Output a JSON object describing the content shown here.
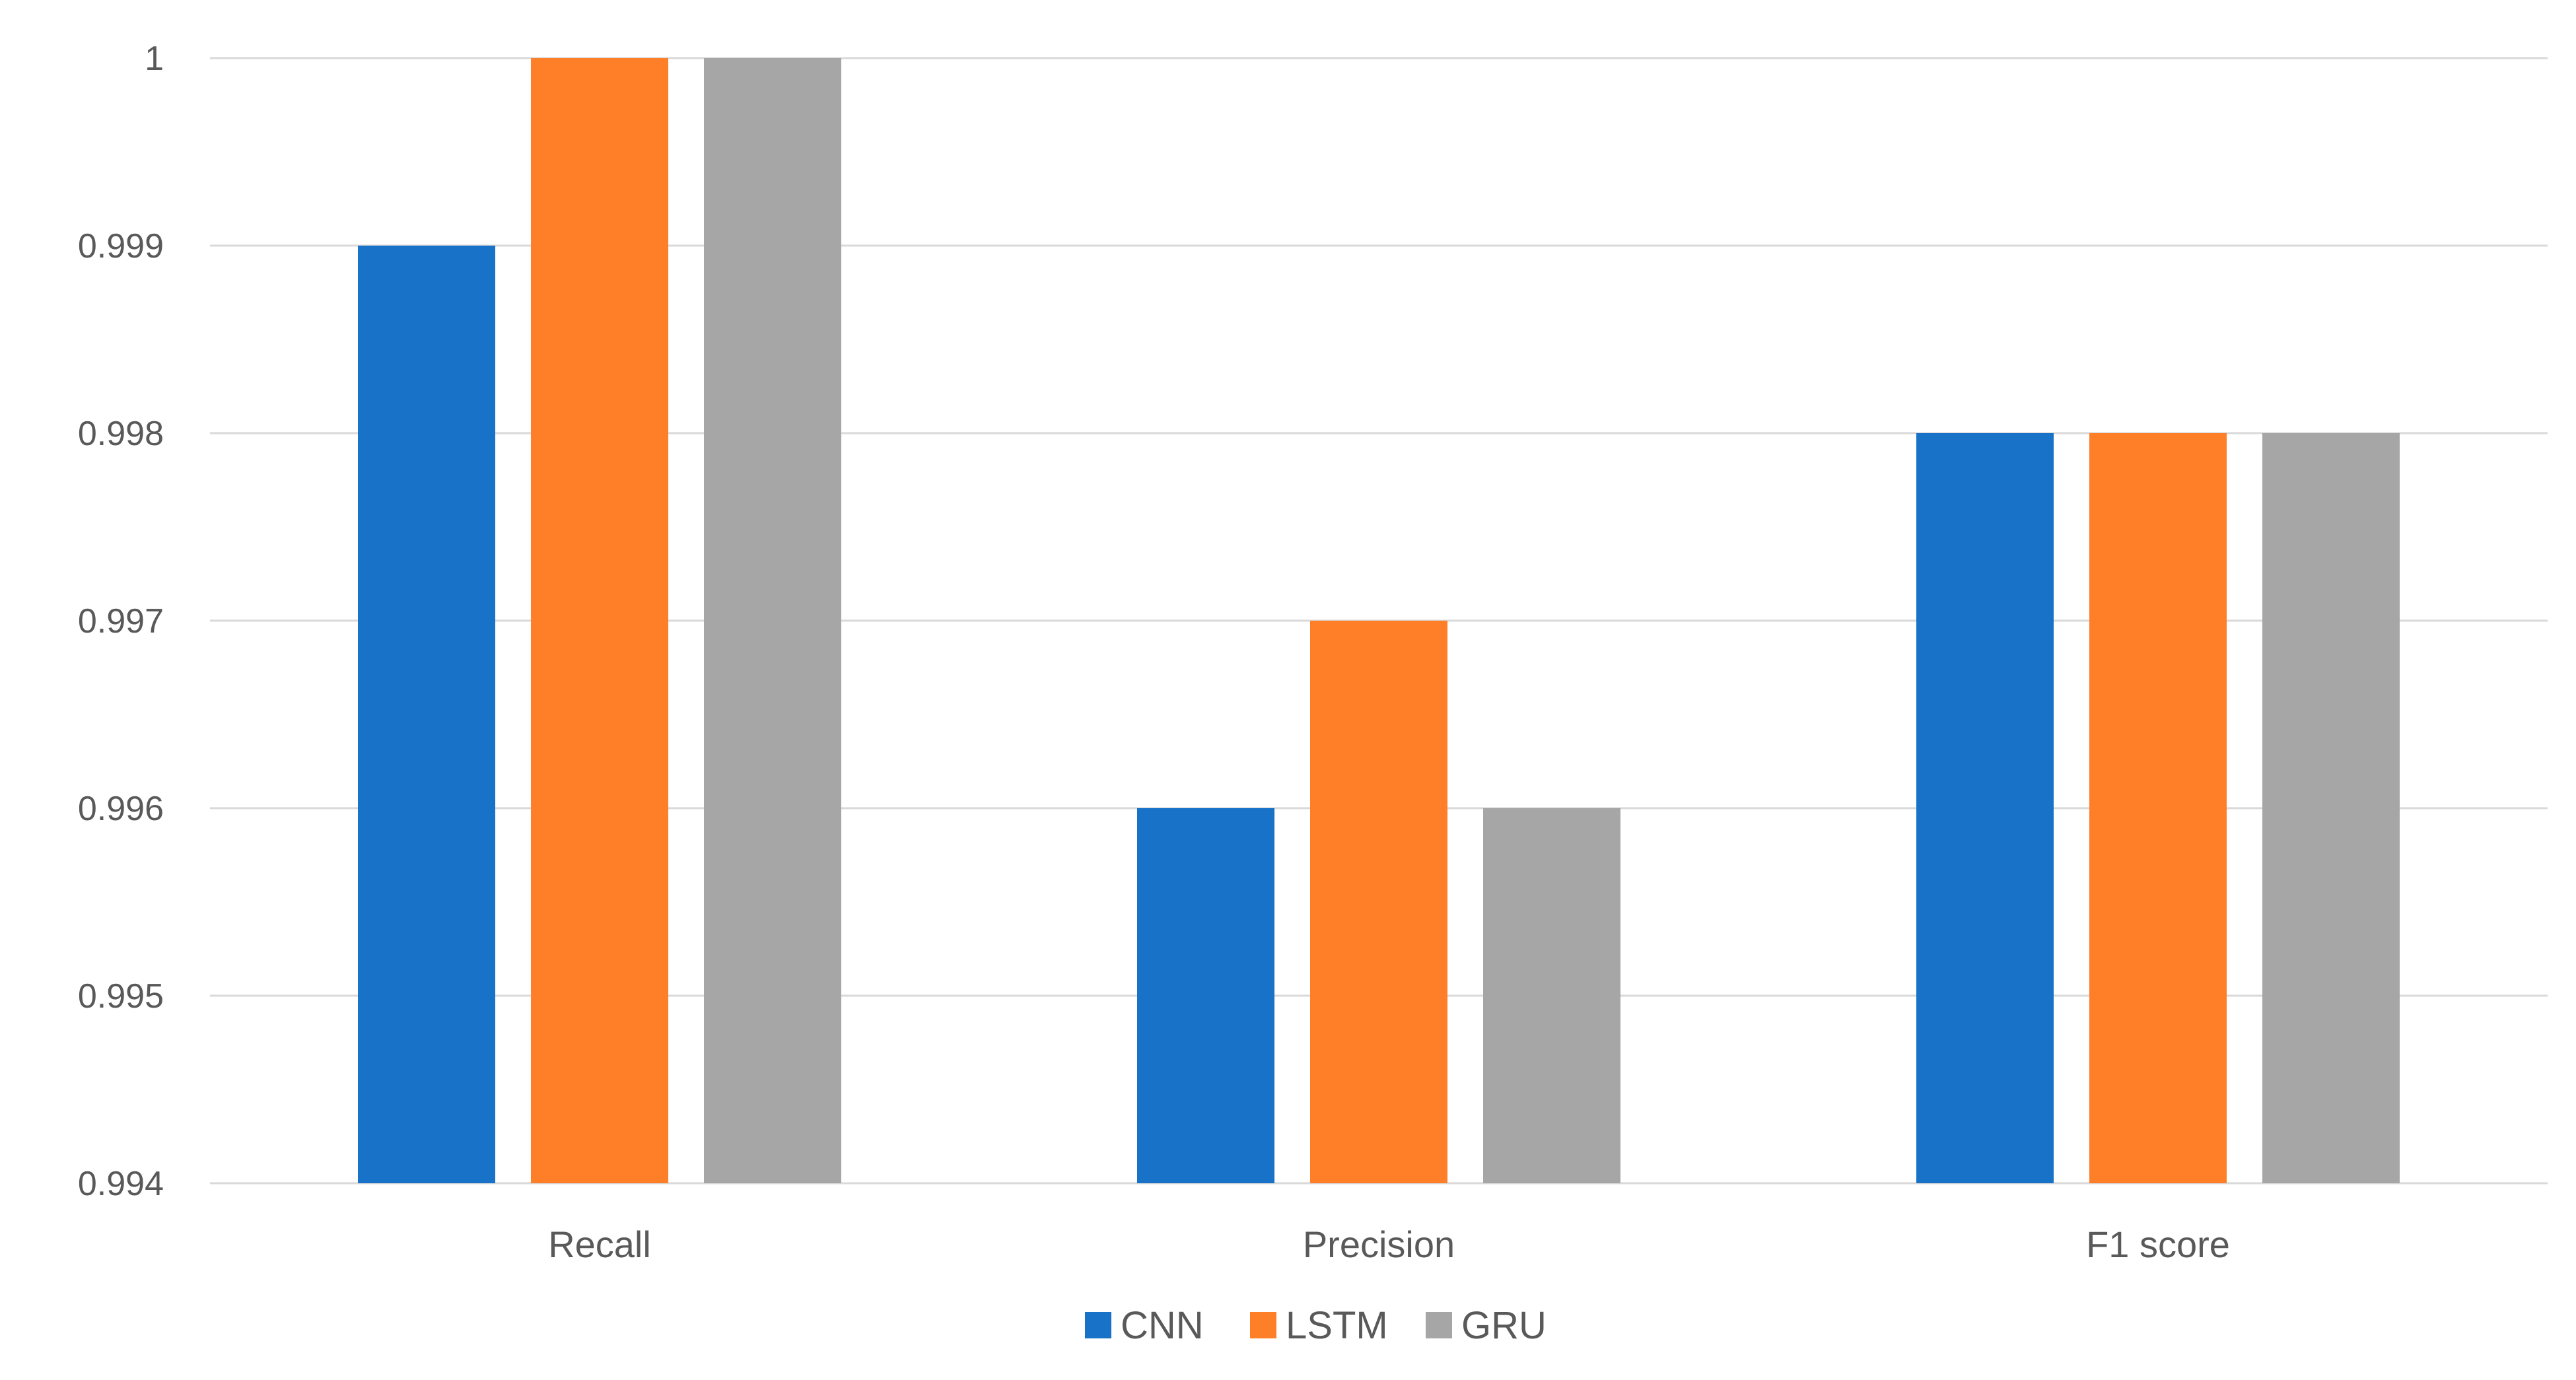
{
  "chart_data": {
    "type": "bar",
    "categories": [
      "Recall",
      "Precision",
      "F1 score"
    ],
    "series": [
      {
        "name": "CNN",
        "color": "#1872c7",
        "values": [
          0.999,
          0.996,
          0.998
        ]
      },
      {
        "name": "LSTM",
        "color": "#fe7f27",
        "values": [
          1.0,
          0.997,
          0.998
        ]
      },
      {
        "name": "GRU",
        "color": "#a6a6a6",
        "values": [
          1.0,
          0.996,
          0.998
        ]
      }
    ],
    "ylim": [
      0.994,
      1.0
    ],
    "yticks": [
      "0.994",
      "0.995",
      "0.996",
      "0.997",
      "0.998",
      "0.999",
      "1"
    ],
    "grid": true,
    "legend_position": "bottom"
  }
}
